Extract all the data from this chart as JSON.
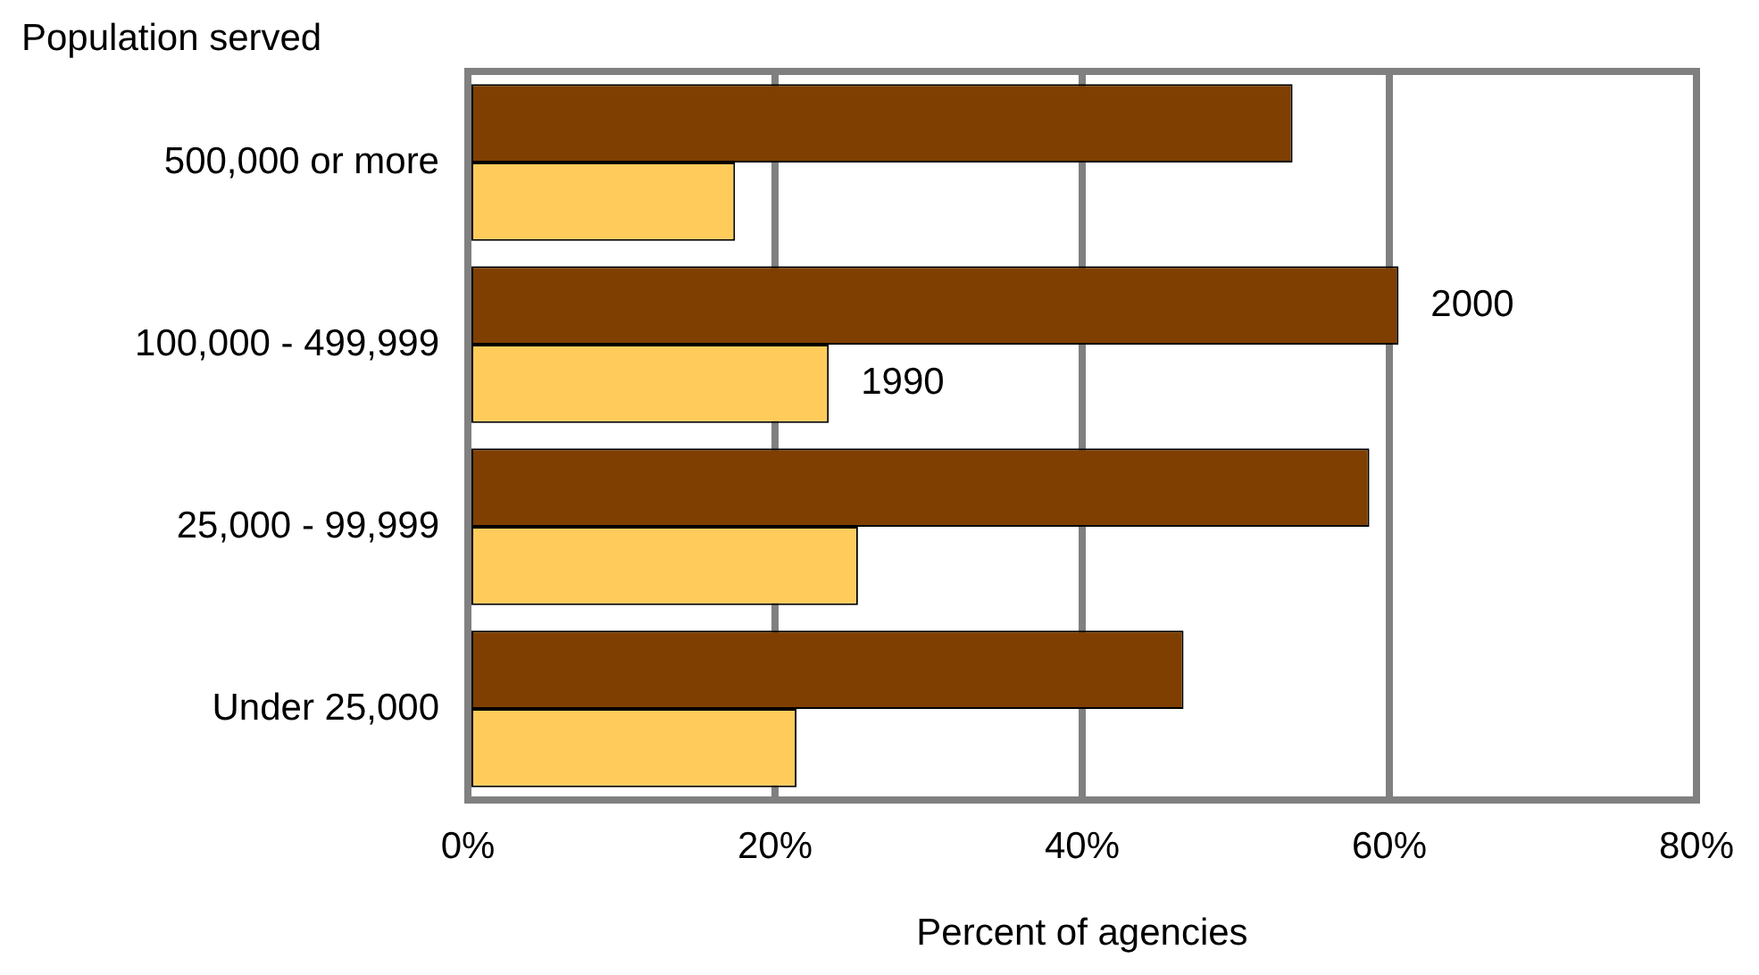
{
  "chart_data": {
    "type": "bar",
    "orientation": "horizontal",
    "xlabel": "Percent of agencies",
    "ylabel": "Population served",
    "categories": [
      "500,000 or more",
      "100,000 - 499,999",
      "25,000 - 99,999",
      "Under 25,000"
    ],
    "series": [
      {
        "name": "2000",
        "color": "#7f3f00",
        "values": [
          53.7,
          60.6,
          58.7,
          46.6
        ]
      },
      {
        "name": "1990",
        "color": "#ffcc5c",
        "values": [
          17.4,
          23.5,
          25.4,
          21.4
        ]
      }
    ],
    "xlim": [
      0,
      80
    ],
    "xticks": [
      {
        "value": 0,
        "label": "0%"
      },
      {
        "value": 20,
        "label": "20%"
      },
      {
        "value": 40,
        "label": "40%"
      },
      {
        "value": 60,
        "label": "60%"
      },
      {
        "value": 80,
        "label": "80%"
      }
    ],
    "grid": "x",
    "legend": false
  }
}
